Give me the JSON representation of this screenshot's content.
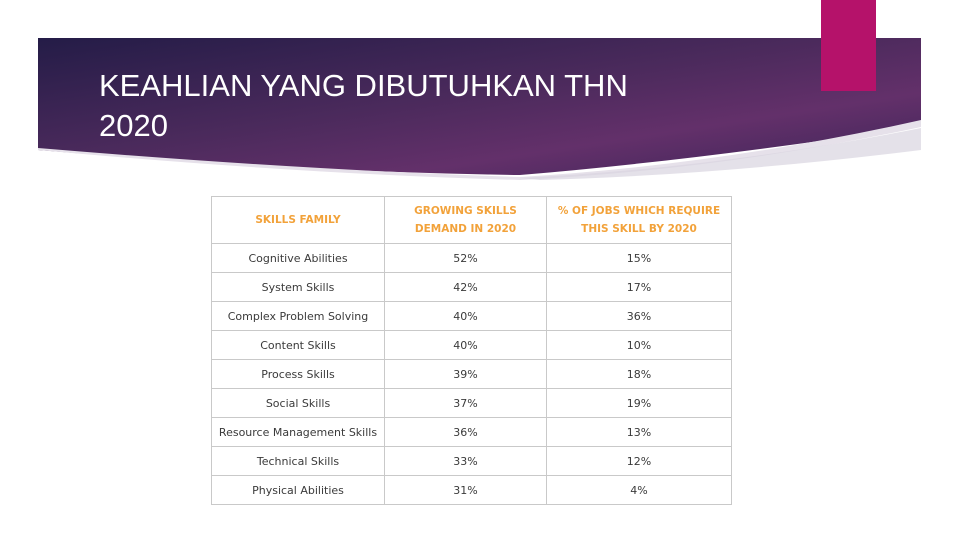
{
  "slide": {
    "title_lines": [
      "KEAHLIAN YANG DIBUTUHKAN THN",
      "2020"
    ],
    "colors": {
      "banner_dark": "#2a1f4e",
      "banner_light": "#6a2e6a",
      "accent": "#b5126a",
      "header_text": "#f2a23a"
    }
  },
  "table": {
    "headers": [
      [
        "SKILLS FAMILY"
      ],
      [
        "GROWING SKILLS",
        "DEMAND IN 2020"
      ],
      [
        "% OF JOBS WHICH REQUIRE",
        "THIS SKILL BY 2020"
      ]
    ],
    "rows": [
      {
        "skill": "Cognitive Abilities",
        "growing": "52%",
        "jobs": "15%"
      },
      {
        "skill": "System Skills",
        "growing": "42%",
        "jobs": "17%"
      },
      {
        "skill": "Complex Problem Solving",
        "growing": "40%",
        "jobs": "36%"
      },
      {
        "skill": "Content Skills",
        "growing": "40%",
        "jobs": "10%"
      },
      {
        "skill": "Process Skills",
        "growing": "39%",
        "jobs": "18%"
      },
      {
        "skill": "Social Skills",
        "growing": "37%",
        "jobs": "19%"
      },
      {
        "skill": "Resource Management Skills",
        "growing": "36%",
        "jobs": "13%"
      },
      {
        "skill": "Technical Skills",
        "growing": "33%",
        "jobs": "12%"
      },
      {
        "skill": "Physical Abilities",
        "growing": "31%",
        "jobs": "4%"
      }
    ]
  }
}
